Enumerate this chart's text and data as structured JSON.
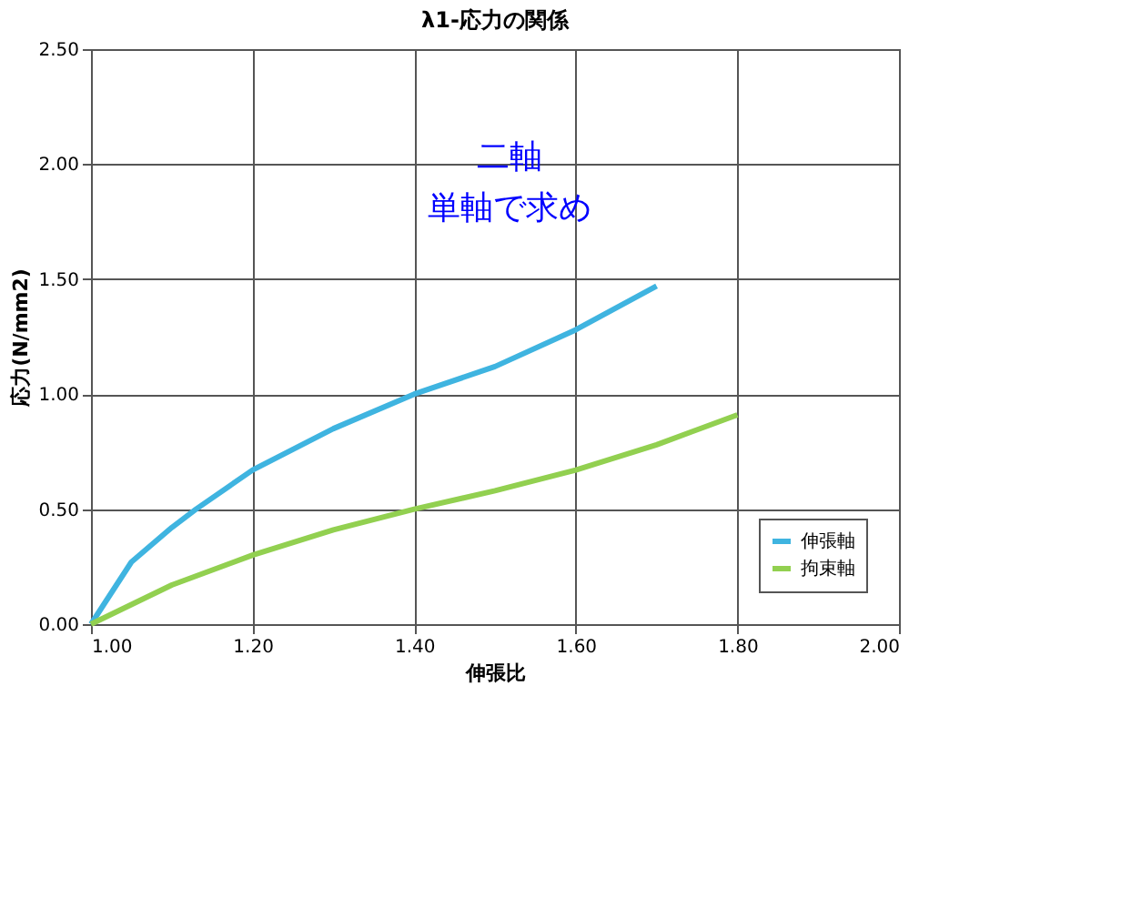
{
  "chart_data": {
    "type": "line",
    "title": "λ1-応力の関係",
    "xlabel": "伸張比",
    "ylabel": "応力(N/mm2)",
    "xlim": [
      1.0,
      2.0
    ],
    "xticks": [
      {
        "value": 1.0,
        "label": "1.00"
      },
      {
        "value": 1.2,
        "label": "1.20"
      },
      {
        "value": 1.4,
        "label": "1.40"
      },
      {
        "value": 1.6,
        "label": "1.60"
      },
      {
        "value": 1.8,
        "label": "1.80"
      },
      {
        "value": 2.0,
        "label": "2.00"
      }
    ],
    "ylim": [
      0,
      2.5
    ],
    "yticks": [
      {
        "value": 0,
        "label": "0.00"
      },
      {
        "value": 0.5,
        "label": "0.50"
      },
      {
        "value": 1.0,
        "label": "1.00"
      },
      {
        "value": 1.5,
        "label": "1.50"
      },
      {
        "value": 2.0,
        "label": "2.00"
      },
      {
        "value": 2.5,
        "label": "2.50"
      }
    ],
    "grid": true,
    "legend": "bottom right",
    "marker": "none",
    "line_style": "solid",
    "series": [
      {
        "name": "伸張軸",
        "color": "#3fb4e0",
        "x": [
          1.0,
          1.05,
          1.1,
          1.13,
          1.2,
          1.3,
          1.4,
          1.5,
          1.6,
          1.7
        ],
        "values": [
          0,
          0.27,
          0.42,
          0.5,
          0.67,
          0.85,
          1.0,
          1.12,
          1.28,
          1.47
        ]
      },
      {
        "name": "拘束軸",
        "color": "#92d050",
        "x": [
          1.0,
          1.1,
          1.2,
          1.3,
          1.4,
          1.5,
          1.6,
          1.7,
          1.8
        ],
        "values": [
          0,
          0.17,
          0.3,
          0.41,
          0.5,
          0.58,
          0.67,
          0.78,
          0.91
        ]
      }
    ],
    "annotations": [
      "二軸",
      "単軸で求め"
    ]
  }
}
